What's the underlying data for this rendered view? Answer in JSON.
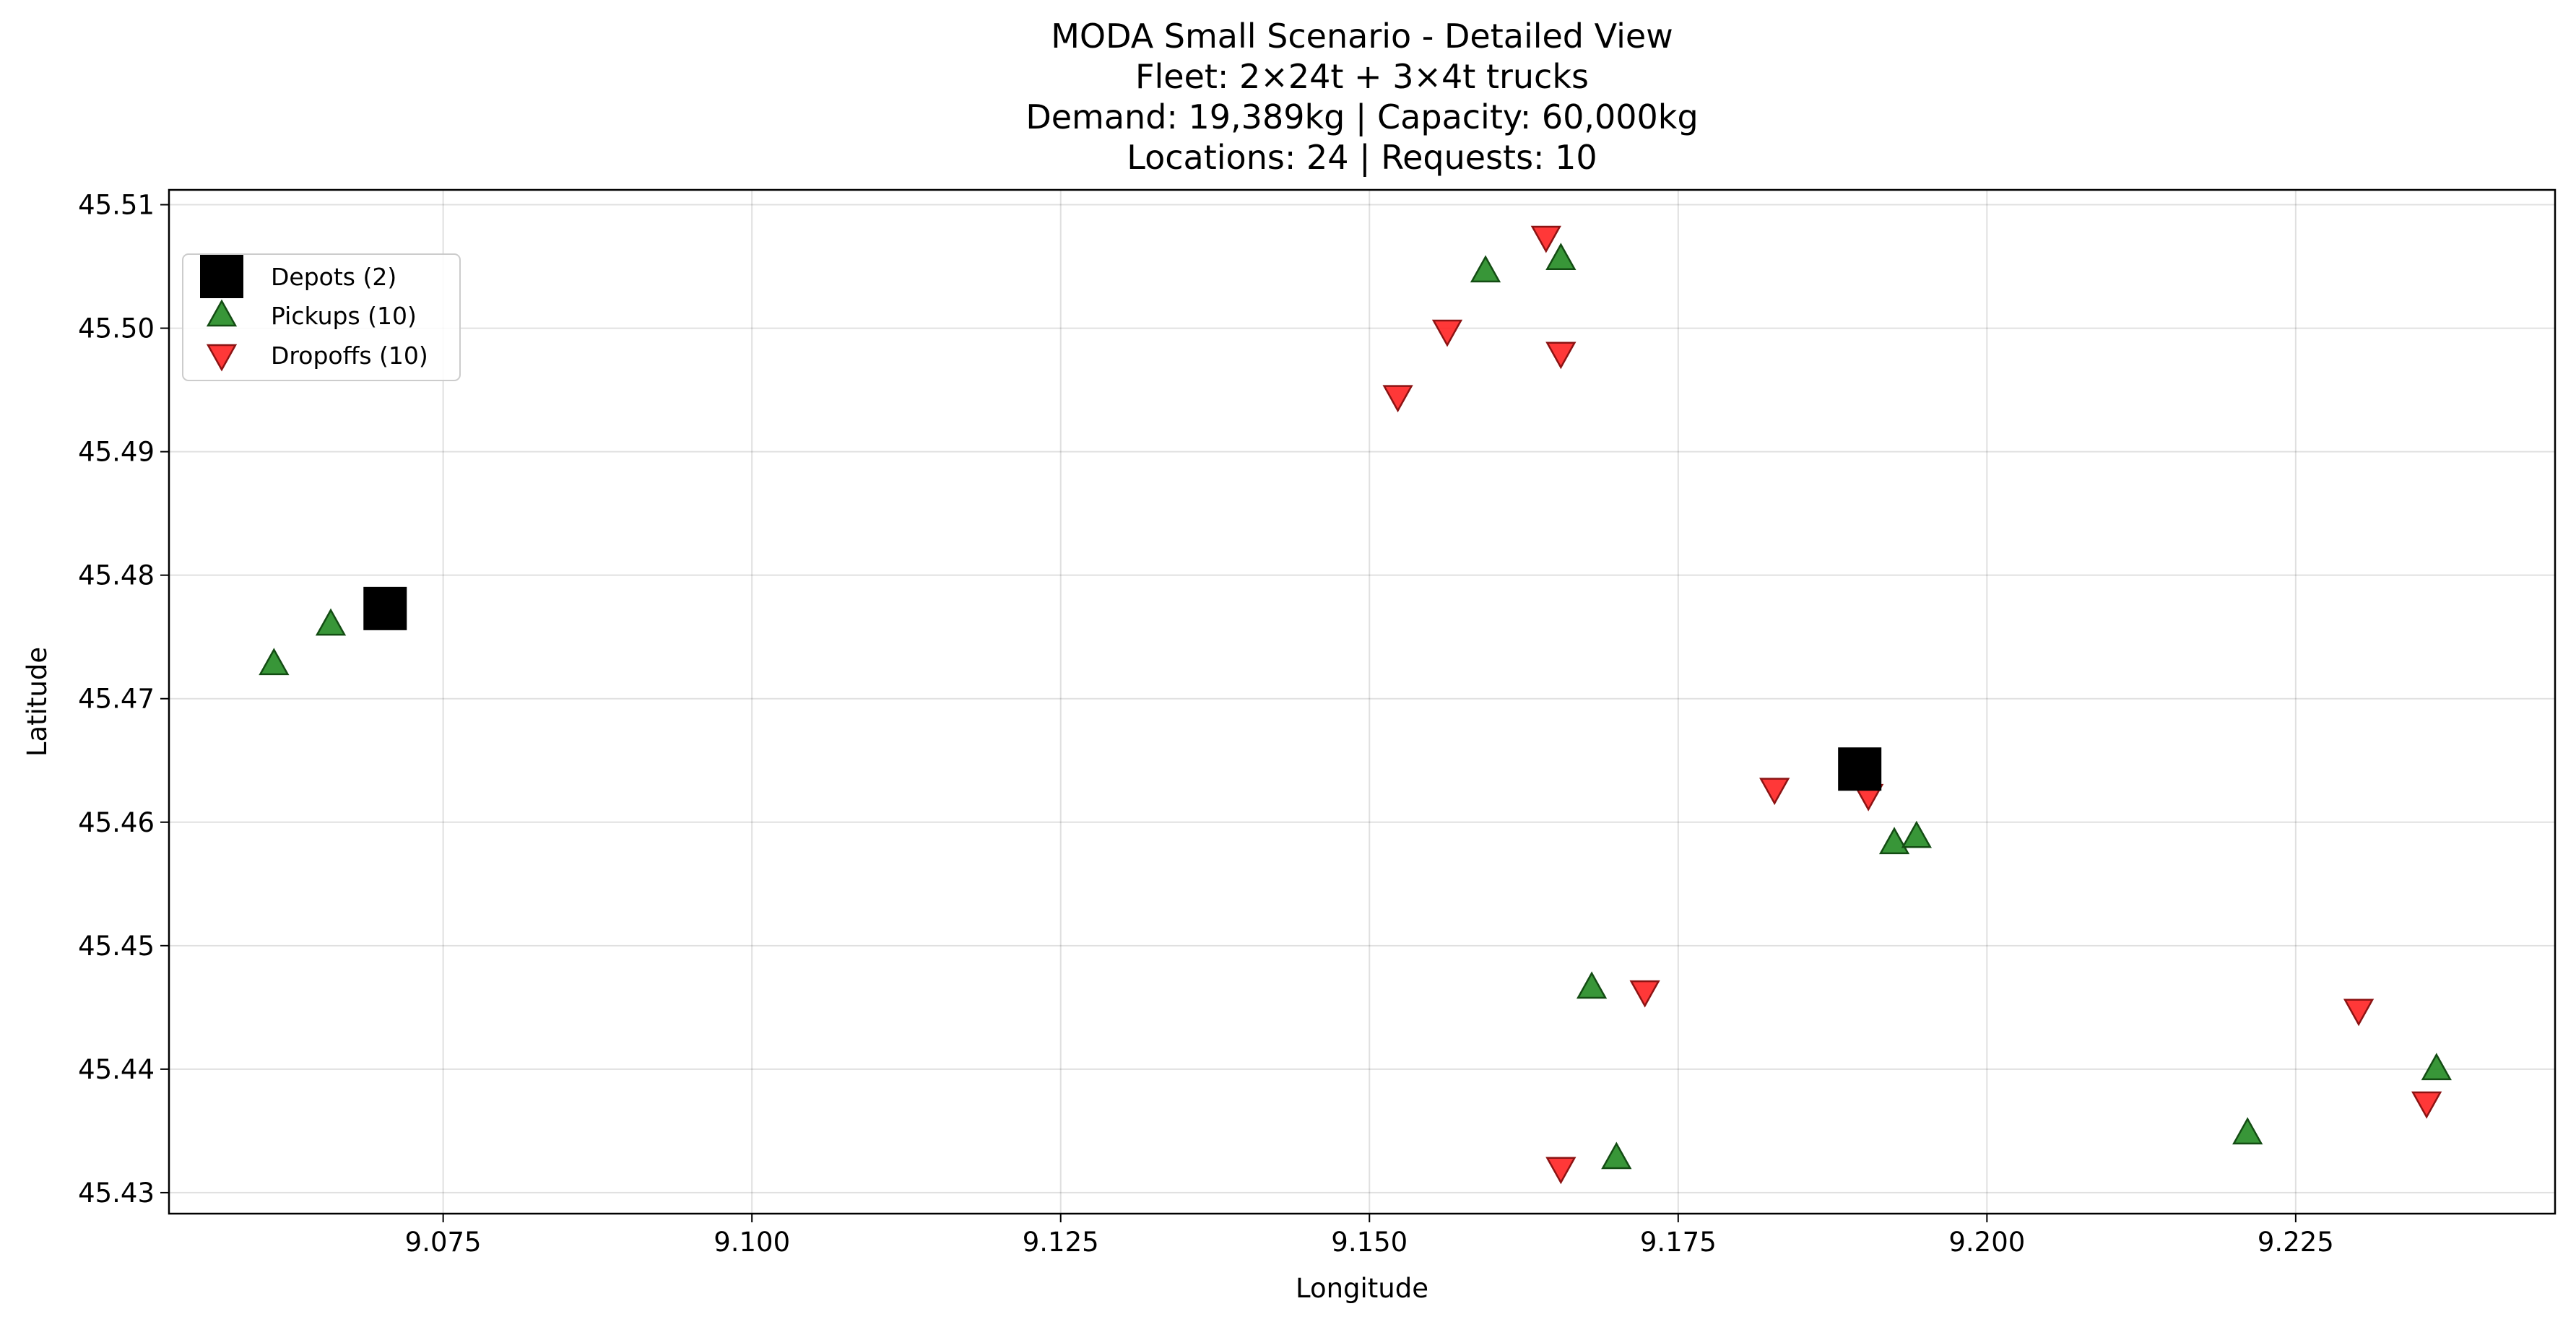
{
  "chart_data": {
    "type": "scatter",
    "title_lines": [
      "MODA Small Scenario - Detailed View",
      "Fleet: 2×24t + 3×4t trucks",
      "Demand: 19,389kg | Capacity: 60,000kg",
      "Locations: 24 | Requests: 10"
    ],
    "xlabel": "Longitude",
    "ylabel": "Latitude",
    "xlim": [
      9.0528,
      9.246
    ],
    "ylim": [
      45.4283,
      45.5112
    ],
    "xticks": [
      9.075,
      9.1,
      9.125,
      9.15,
      9.175,
      9.2,
      9.225
    ],
    "xtick_labels": [
      "9.075",
      "9.100",
      "9.125",
      "9.150",
      "9.175",
      "9.200",
      "9.225"
    ],
    "yticks": [
      45.43,
      45.44,
      45.45,
      45.46,
      45.47,
      45.48,
      45.49,
      45.5,
      45.51
    ],
    "ytick_labels": [
      "45.43",
      "45.44",
      "45.45",
      "45.46",
      "45.47",
      "45.48",
      "45.49",
      "45.50",
      "45.51"
    ],
    "grid": true,
    "legend_position": "upper-left",
    "series": [
      {
        "name": "Depots (2)",
        "marker": "square",
        "color": "#000000",
        "points": [
          {
            "x": 9.0703,
            "y": 45.4773
          },
          {
            "x": 9.1897,
            "y": 45.4643
          }
        ]
      },
      {
        "name": "Pickups (10)",
        "marker": "triangle-up",
        "color": "#228B22",
        "points": [
          {
            "x": 9.0613,
            "y": 45.4728
          },
          {
            "x": 9.0659,
            "y": 45.476
          },
          {
            "x": 9.1594,
            "y": 45.5046
          },
          {
            "x": 9.1655,
            "y": 45.5056
          },
          {
            "x": 9.1925,
            "y": 45.4583
          },
          {
            "x": 9.1943,
            "y": 45.4588
          },
          {
            "x": 9.168,
            "y": 45.4466
          },
          {
            "x": 9.17,
            "y": 45.4328
          },
          {
            "x": 9.2211,
            "y": 45.4348
          },
          {
            "x": 9.2364,
            "y": 45.44
          }
        ]
      },
      {
        "name": "Dropoffs (10)",
        "marker": "triangle-down",
        "color": "#FF2222",
        "points": [
          {
            "x": 9.1643,
            "y": 45.5074
          },
          {
            "x": 9.1563,
            "y": 45.4998
          },
          {
            "x": 9.1655,
            "y": 45.498
          },
          {
            "x": 9.1523,
            "y": 45.4945
          },
          {
            "x": 9.1828,
            "y": 45.4627
          },
          {
            "x": 9.1904,
            "y": 45.4622
          },
          {
            "x": 9.1723,
            "y": 45.4463
          },
          {
            "x": 9.1655,
            "y": 45.432
          },
          {
            "x": 9.2301,
            "y": 45.4448
          },
          {
            "x": 9.2356,
            "y": 45.4373
          }
        ]
      }
    ]
  }
}
